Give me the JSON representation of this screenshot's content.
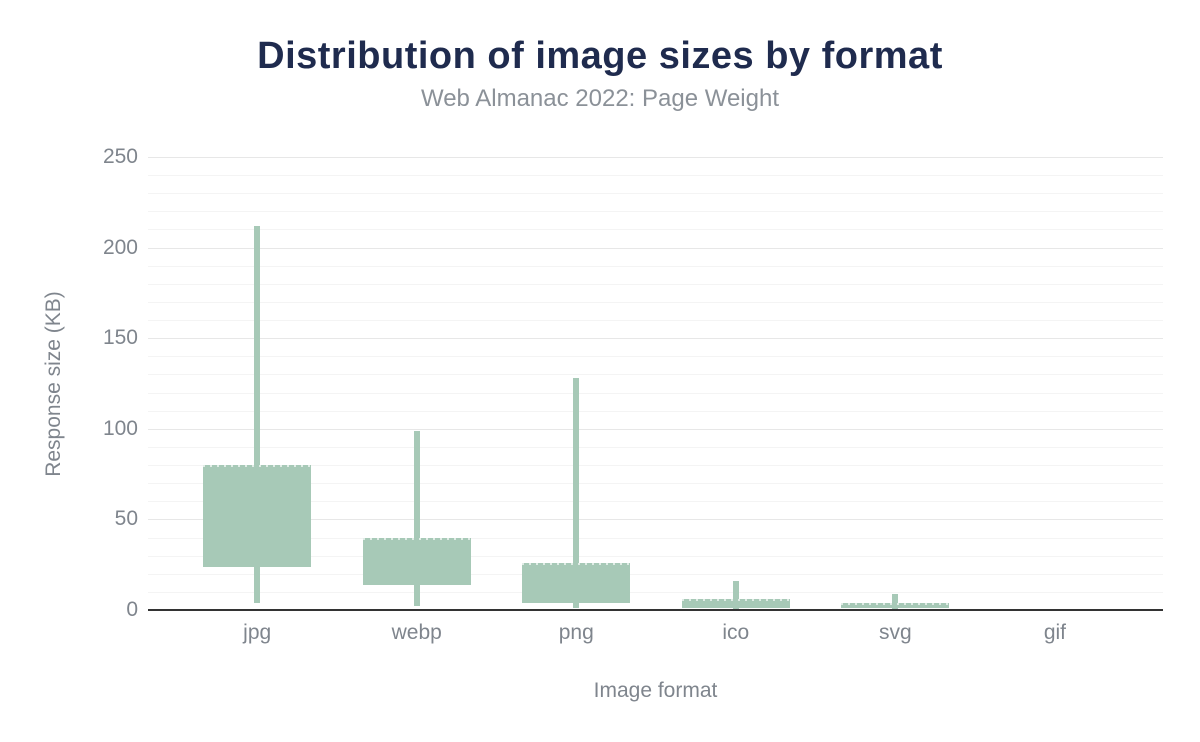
{
  "page": {
    "background": "#ffffff"
  },
  "chart_data": {
    "type": "boxplot",
    "title": "Distribution of image sizes by format",
    "subtitle": "Web Almanac 2022: Page Weight",
    "xlabel": "Image format",
    "ylabel": "Response size (KB)",
    "unit": "KB",
    "ylim": [
      0,
      250
    ],
    "y_ticks": [
      0,
      50,
      100,
      150,
      200,
      250
    ],
    "minor_grid_step": 10,
    "major_tick_step": 50,
    "grid": "on",
    "legend": "none",
    "categories": [
      "jpg",
      "webp",
      "png",
      "ico",
      "svg",
      "gif"
    ],
    "series": [
      {
        "name": "jpg",
        "p10": 4,
        "p25": 24,
        "p75": 80,
        "p90": 212
      },
      {
        "name": "webp",
        "p10": 2,
        "p25": 14,
        "p75": 40,
        "p90": 99
      },
      {
        "name": "png",
        "p10": 1,
        "p25": 4,
        "p75": 26,
        "p90": 128
      },
      {
        "name": "ico",
        "p10": 0,
        "p25": 1,
        "p75": 6,
        "p90": 16
      },
      {
        "name": "svg",
        "p10": 0,
        "p25": 1,
        "p75": 4,
        "p90": 9
      },
      {
        "name": "gif",
        "p10": 0,
        "p25": 0,
        "p75": 0,
        "p90": 0
      }
    ],
    "colors": {
      "box_fill": "#a7c9b7",
      "whisker": "#a7c9b7",
      "title_text": "#1f2b4e",
      "subtitle_text": "#8b9198",
      "axis_text": "#7f858d",
      "grid_major": "#e7e7e7",
      "grid_minor": "#f4f4f4",
      "axis_line": "#333333"
    }
  }
}
